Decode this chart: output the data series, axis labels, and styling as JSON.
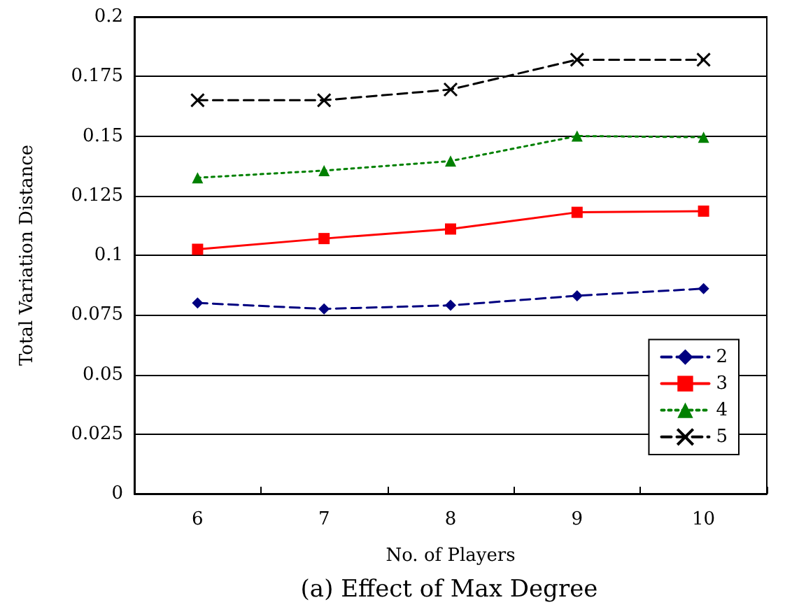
{
  "chart_data": {
    "type": "line",
    "xlabel": "No. of Players",
    "ylabel": "Total Variation Distance",
    "annotations": [
      "(a) Effect of Max Degree"
    ],
    "categories": [
      "6",
      "7",
      "8",
      "9",
      "10"
    ],
    "series": [
      {
        "name": "2",
        "color": "#000080",
        "marker": "diamond",
        "line_style": "dashed",
        "values": [
          0.08,
          0.0775,
          0.079,
          0.083,
          0.086
        ]
      },
      {
        "name": "3",
        "color": "#ff0000",
        "marker": "square",
        "line_style": "solid",
        "values": [
          0.1025,
          0.107,
          0.111,
          0.118,
          0.1185
        ]
      },
      {
        "name": "4",
        "color": "#008000",
        "marker": "triangle",
        "line_style": "dotted",
        "values": [
          0.1325,
          0.1355,
          0.1395,
          0.15,
          0.1495
        ]
      },
      {
        "name": "5",
        "color": "#000000",
        "marker": "cross",
        "line_style": "dashed",
        "values": [
          0.165,
          0.165,
          0.1695,
          0.182,
          0.182
        ]
      }
    ],
    "ylim": [
      0,
      0.2
    ],
    "yticks": [
      0,
      0.025,
      0.05,
      0.075,
      0.1,
      0.125,
      0.15,
      0.175,
      0.2
    ],
    "grid": "y",
    "legend": "bottom right"
  }
}
